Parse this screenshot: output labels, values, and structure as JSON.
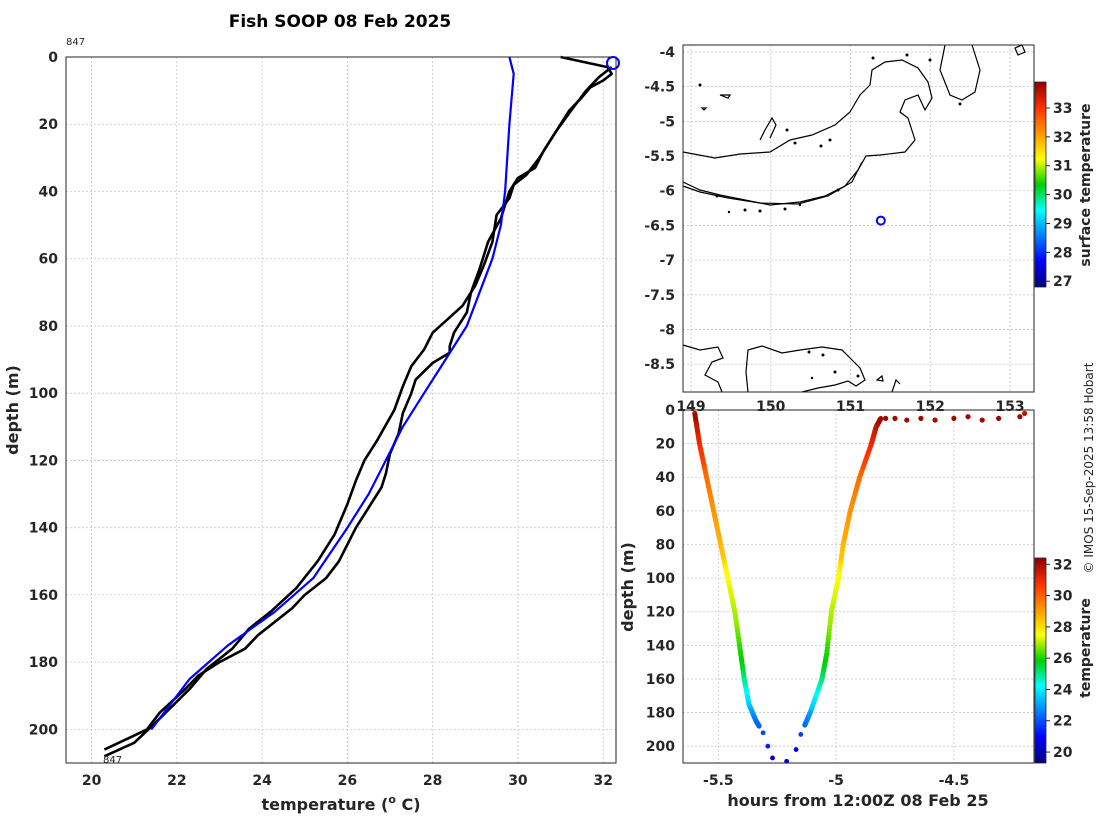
{
  "chart_data": [
    {
      "type": "line",
      "title": "Fish SOOP 08 Feb 2025",
      "xlabel": "temperature (",
      "xlabel_sup": "o",
      "xlabel_unit": " C)",
      "ylabel": "depth (m)",
      "xlim": [
        19.4,
        32.3
      ],
      "ylim": [
        0,
        210
      ],
      "y_reversed": true,
      "xticks": [
        20,
        22,
        24,
        26,
        28,
        30,
        32
      ],
      "yticks": [
        0,
        20,
        40,
        60,
        80,
        100,
        120,
        140,
        160,
        180,
        200
      ],
      "annotations": [
        "847",
        "847"
      ],
      "series": [
        {
          "name": "profile-down",
          "color": "#000000",
          "x": [
            31.0,
            32.1,
            32.2,
            32.0,
            31.7,
            31.5,
            31.2,
            31.0,
            30.6,
            30.4,
            30.0,
            29.8,
            29.7,
            29.6,
            29.3,
            29.1,
            28.9,
            28.8,
            28.5,
            28.4,
            28.4,
            28.0,
            27.6,
            27.5,
            27.3,
            27.2,
            27.0,
            26.9,
            26.8,
            26.5,
            26.2,
            26.0,
            25.8,
            25.5,
            25.0,
            24.7,
            24.3,
            23.9,
            23.6,
            23.0,
            22.5,
            22.2,
            21.6,
            21.3,
            20.3
          ],
          "y": [
            0,
            3,
            5,
            7,
            9,
            12,
            16,
            20,
            28,
            33,
            36,
            40,
            44,
            48,
            55,
            63,
            70,
            76,
            82,
            86,
            88,
            91,
            96,
            100,
            106,
            112,
            118,
            124,
            128,
            134,
            140,
            145,
            150,
            155,
            160,
            164,
            168,
            172,
            176,
            180,
            184,
            188,
            195,
            200,
            206
          ]
        },
        {
          "name": "profile-up",
          "color": "#000000",
          "x": [
            32.2,
            31.9,
            31.6,
            31.3,
            30.9,
            30.5,
            30.2,
            29.9,
            29.8,
            29.5,
            29.4,
            29.2,
            29.0,
            28.7,
            28.0,
            27.8,
            27.5,
            27.3,
            27.1,
            26.7,
            26.4,
            26.2,
            26.0,
            25.7,
            25.3,
            24.8,
            24.2,
            23.7,
            23.3,
            22.7,
            22.3,
            21.9,
            21.5,
            21.0,
            20.3
          ],
          "y": [
            3,
            6,
            10,
            15,
            22,
            30,
            35,
            38,
            42,
            47,
            55,
            62,
            68,
            74,
            82,
            87,
            92,
            98,
            105,
            114,
            120,
            126,
            133,
            142,
            150,
            158,
            165,
            170,
            176,
            182,
            188,
            193,
            198,
            204,
            208
          ]
        },
        {
          "name": "climatology",
          "color": "#0000ff",
          "x": [
            29.8,
            29.9,
            29.8,
            29.7,
            29.6,
            29.4,
            29.1,
            28.8,
            28.3,
            27.8,
            27.3,
            26.9,
            26.5,
            26.0,
            25.2,
            24.3,
            23.2,
            22.3,
            21.4
          ],
          "y": [
            0,
            5,
            20,
            40,
            50,
            60,
            70,
            80,
            90,
            100,
            110,
            120,
            130,
            140,
            155,
            165,
            175,
            185,
            200
          ]
        }
      ]
    },
    {
      "type": "map",
      "xlim": [
        148.9,
        153.3
      ],
      "ylim": [
        -8.9,
        -3.9
      ],
      "yticks": [
        -4,
        -4.5,
        -5,
        -5.5,
        -6,
        -6.5,
        -7,
        -7.5,
        -8,
        -8.5
      ],
      "xticks": [
        149,
        150,
        151,
        152,
        153
      ],
      "marker": {
        "lon": 151.38,
        "lat": -6.43,
        "color": "#0000ff"
      },
      "colorbar_label": "surface temperature",
      "colorbar_ticks": [
        27,
        28,
        29,
        30,
        31,
        32,
        33
      ],
      "colorbar_range": [
        26.8,
        33.9
      ]
    },
    {
      "type": "scatter",
      "xlabel": "hours from 12:00Z 08 Feb 25",
      "ylabel": "depth (m)",
      "xlim": [
        -5.65,
        -4.16
      ],
      "ylim": [
        0,
        210
      ],
      "y_reversed": true,
      "xticks": [
        -5.5,
        -5,
        -4.5
      ],
      "yticks": [
        0,
        20,
        40,
        60,
        80,
        100,
        120,
        140,
        160,
        180,
        200
      ],
      "colorbar_label": "temperature",
      "colorbar_ticks": [
        20,
        22,
        24,
        26,
        28,
        30,
        32
      ],
      "colorbar_range": [
        19.3,
        32.4
      ],
      "series": [
        {
          "name": "descent",
          "t": [
            -5.6,
            -5.58,
            -5.55,
            -5.52,
            -5.49,
            -5.46,
            -5.43,
            -5.41,
            -5.39,
            -5.37,
            -5.34,
            -5.31,
            -5.29,
            -5.27
          ],
          "depth": [
            2,
            20,
            40,
            60,
            80,
            100,
            120,
            140,
            160,
            175,
            185,
            192,
            200,
            207
          ]
        },
        {
          "name": "ascent",
          "t": [
            -5.21,
            -5.17,
            -5.15,
            -5.11,
            -5.06,
            -5.04,
            -5.02,
            -4.99,
            -4.97,
            -4.94,
            -4.9,
            -4.85,
            -4.83,
            -4.81
          ],
          "depth": [
            209,
            202,
            193,
            180,
            160,
            145,
            120,
            100,
            80,
            60,
            40,
            20,
            10,
            5
          ]
        },
        {
          "name": "surface",
          "t": [
            -4.79,
            -4.75,
            -4.7,
            -4.64,
            -4.58,
            -4.5,
            -4.44,
            -4.38,
            -4.31,
            -4.22,
            -4.2
          ],
          "depth": [
            5,
            5,
            6,
            5,
            6,
            5,
            4,
            6,
            5,
            4,
            2
          ]
        }
      ]
    }
  ],
  "credit": "© IMOS 15-Sep-2025 13:58 Hobart"
}
